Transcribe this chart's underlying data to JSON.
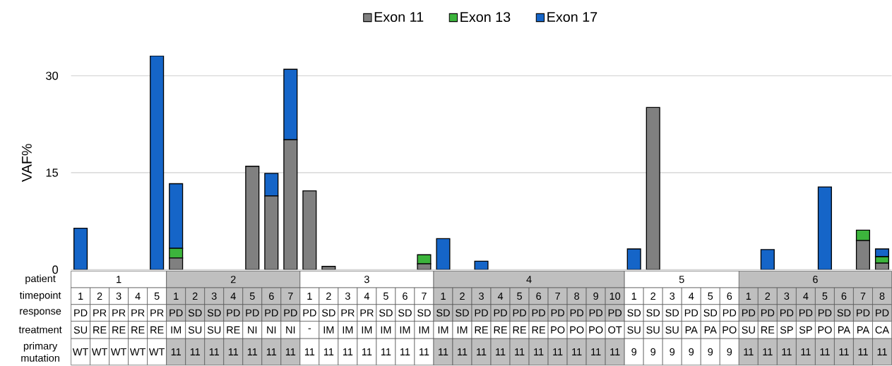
{
  "chart_data": {
    "type": "bar",
    "stacked": true,
    "ylabel": "VAF%",
    "categories": [
      "1",
      "2",
      "3",
      "4",
      "5",
      "1",
      "2",
      "3",
      "4",
      "5",
      "6",
      "7",
      "1",
      "2",
      "3",
      "4",
      "5",
      "6",
      "7",
      "1",
      "2",
      "3",
      "4",
      "5",
      "6",
      "7",
      "8",
      "9",
      "10",
      "1",
      "2",
      "3",
      "4",
      "5",
      "6",
      "1",
      "2",
      "3",
      "4",
      "5",
      "6",
      "7",
      "8"
    ],
    "series": [
      {
        "name": "Exon 11",
        "color": "#808080",
        "values": [
          0,
          0,
          0,
          0,
          0,
          1.8,
          0,
          0,
          0,
          16,
          11.4,
          20.1,
          12.2,
          0.5,
          0,
          0,
          0,
          0,
          0.9,
          0,
          0,
          0,
          0,
          0,
          0,
          0,
          0,
          0,
          0,
          0,
          25.1,
          0,
          0,
          0,
          0,
          0,
          0,
          0,
          0,
          0,
          0,
          4.5,
          1.0
        ]
      },
      {
        "name": "Exon 13",
        "color": "#3cb43c",
        "values": [
          0,
          0,
          0,
          0,
          0,
          1.5,
          0,
          0,
          0,
          0,
          0,
          0,
          0,
          0,
          0,
          0,
          0,
          0,
          1.4,
          0,
          0,
          0,
          0,
          0,
          0,
          0,
          0,
          0,
          0,
          0,
          0,
          0,
          0,
          0,
          0,
          0,
          0,
          0,
          0,
          0,
          0,
          1.6,
          1.0
        ]
      },
      {
        "name": "Exon 17",
        "color": "#1565c8",
        "values": [
          6.4,
          0,
          0,
          0,
          33.1,
          10,
          0,
          0,
          0,
          0,
          3.5,
          10.9,
          0,
          0,
          0,
          0,
          0,
          0,
          0,
          4.8,
          0,
          1.3,
          0,
          0,
          0,
          0,
          0,
          0,
          0,
          3.2,
          0,
          0,
          0,
          0,
          0,
          0,
          3.1,
          0,
          0,
          12.8,
          0,
          0,
          1.2
        ]
      }
    ],
    "ylim": [
      0,
      33.1
    ],
    "yticks": [
      0,
      15,
      30
    ],
    "grid": "y",
    "legend": "top",
    "annotations": [
      "patient",
      "timepoint",
      "response",
      "treatment",
      "primary mutation",
      "1",
      "2",
      "3",
      "4",
      "5",
      "6",
      "PD",
      "PR",
      "PR",
      "PR",
      "PR",
      "PD",
      "SD",
      "SD",
      "PD",
      "PD",
      "PD",
      "PD",
      "PD",
      "SD",
      "PR",
      "PR",
      "SD",
      "SD",
      "SD",
      "SD",
      "SD",
      "PD",
      "PD",
      "PD",
      "PD",
      "PD",
      "PD",
      "PD",
      "PD",
      "SD",
      "SD",
      "SD",
      "PD",
      "SD",
      "PD",
      "PD",
      "PD",
      "PD",
      "PD",
      "PD",
      "SD",
      "PD",
      "PD",
      "SU",
      "RE",
      "RE",
      "RE",
      "RE",
      "IM",
      "SU",
      "SU",
      "RE",
      "NI",
      "NI",
      "NI",
      "-",
      "IM",
      "IM",
      "IM",
      "IM",
      "IM",
      "IM",
      "IM",
      "IM",
      "RE",
      "RE",
      "RE",
      "RE",
      "PO",
      "PO",
      "PO",
      "OT",
      "SU",
      "SU",
      "SU",
      "PA",
      "PA",
      "PO",
      "SU",
      "RE",
      "SP",
      "SP",
      "PO",
      "PA",
      "PA",
      "CA",
      "WT",
      "WT",
      "WT",
      "WT",
      "WT",
      "11",
      "11",
      "11",
      "11",
      "11",
      "11",
      "11",
      "11",
      "11",
      "11",
      "11",
      "11",
      "11",
      "11",
      "11",
      "11",
      "11",
      "11",
      "11",
      "11",
      "11",
      "11",
      "11",
      "11",
      "9",
      "9",
      "9",
      "9",
      "9",
      "9",
      "11",
      "11",
      "11",
      "11",
      "11",
      "11",
      "11",
      "11"
    ]
  }
}
